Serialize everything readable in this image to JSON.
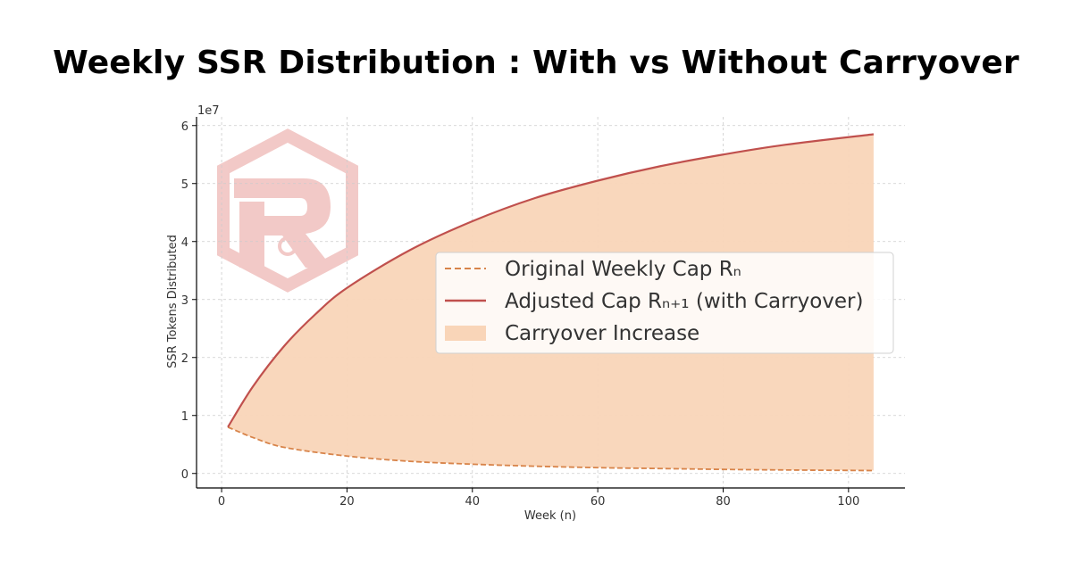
{
  "title": "Weekly SSR Distribution : With vs Without Carryover",
  "colors": {
    "original": "#d8844a",
    "adjusted": "#c0504d",
    "fill": "#f9d5b8",
    "grid": "#cccccc",
    "logo": "#f1c4c2"
  },
  "chart_data": {
    "type": "line",
    "title": "Weekly SSR Distribution : With vs Without Carryover",
    "xlabel": "Week (n)",
    "ylabel": "SSR Tokens Distributed",
    "y_offset_label": "1e7",
    "xlim": [
      -4,
      109
    ],
    "ylim": [
      -0.25,
      6.15
    ],
    "y_unit_multiplier": 10000000,
    "x_ticks": [
      0,
      20,
      40,
      60,
      80,
      100
    ],
    "y_ticks": [
      0,
      1,
      2,
      3,
      4,
      5,
      6
    ],
    "grid": true,
    "legend_position": "center-right",
    "series": [
      {
        "name": "Original Weekly Cap Rₙ",
        "style": "dashed",
        "x": [
          1,
          5,
          10,
          20,
          30,
          40,
          50,
          60,
          70,
          80,
          90,
          104
        ],
        "y": [
          0.8,
          0.62,
          0.45,
          0.3,
          0.21,
          0.16,
          0.125,
          0.1,
          0.085,
          0.07,
          0.06,
          0.05
        ]
      },
      {
        "name": "Adjusted Cap Rₙ₊₁ (with Carryover)",
        "style": "solid",
        "x": [
          1,
          5,
          10,
          15,
          20,
          30,
          40,
          50,
          60,
          70,
          80,
          90,
          104
        ],
        "y": [
          0.8,
          1.5,
          2.2,
          2.75,
          3.2,
          3.85,
          4.35,
          4.75,
          5.05,
          5.3,
          5.5,
          5.67,
          5.85
        ]
      },
      {
        "name": "Carryover Increase",
        "style": "fill-between"
      }
    ]
  }
}
